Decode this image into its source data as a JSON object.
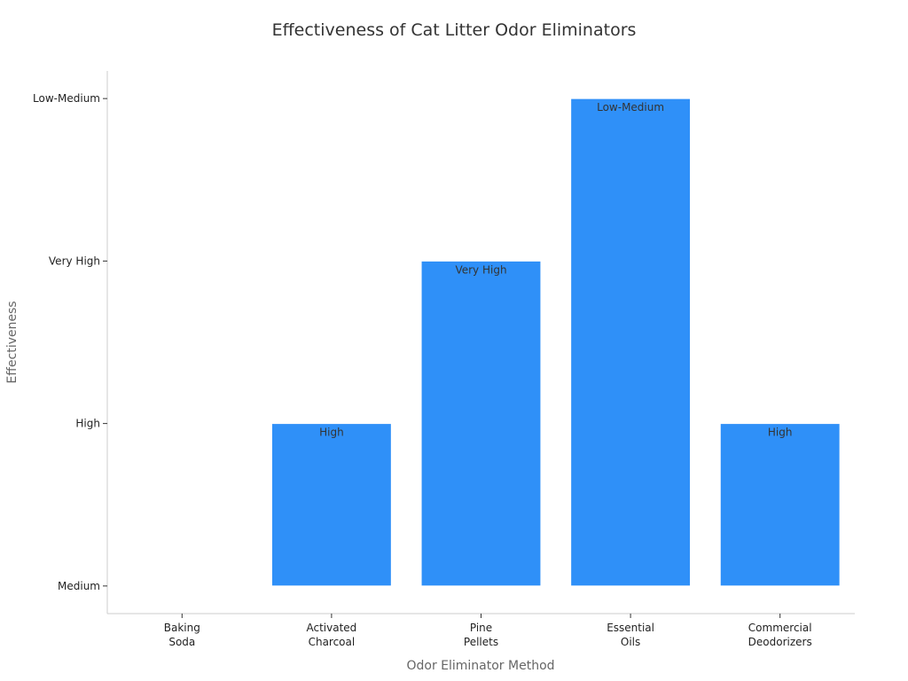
{
  "chart_data": {
    "type": "bar",
    "title": "Effectiveness of Cat Litter Odor Eliminators",
    "xlabel": "Odor Eliminator Method",
    "ylabel": "Effectiveness",
    "categories": [
      [
        "Baking",
        "Soda"
      ],
      [
        "Activated",
        "Charcoal"
      ],
      [
        "Pine",
        "Pellets"
      ],
      [
        "Essential",
        "Oils"
      ],
      [
        "Commercial",
        "Deodorizers"
      ]
    ],
    "y_levels": [
      "Medium",
      "High",
      "Very High",
      "Low-Medium"
    ],
    "values": [
      0,
      1,
      2,
      3,
      1
    ],
    "bar_labels": [
      "",
      "High",
      "Very High",
      "Low-Medium",
      "High"
    ],
    "ylim": [
      -0.17,
      3.17
    ],
    "grid": false,
    "legend": "none",
    "bar_color": "#2f90f8",
    "axis_color": "#cccccc"
  }
}
